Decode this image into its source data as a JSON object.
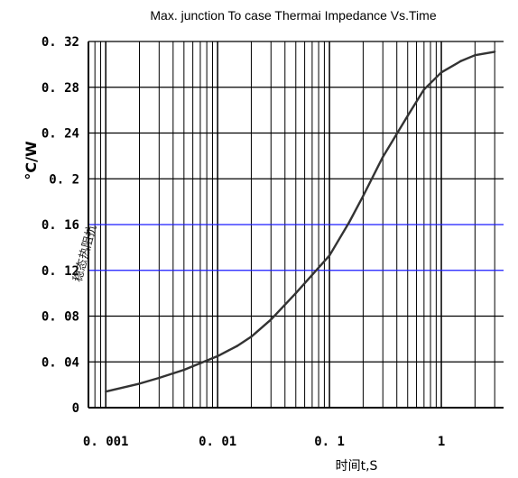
{
  "chart_data": {
    "type": "line",
    "title": "Max. junction To case Thermai Impedance Vs.Time",
    "xlabel": "时间t,S",
    "ylabel": "°C/W",
    "ylabel_secondary": "稳态热阻抗",
    "x_scale": "log",
    "xlim": [
      0.0007,
      3.6
    ],
    "ylim": [
      0,
      0.32
    ],
    "x_ticks": [
      0.001,
      0.01,
      0.1,
      1
    ],
    "x_tick_labels": [
      "0. 001",
      "0. 01",
      "0. 1",
      "1"
    ],
    "y_ticks": [
      0,
      0.04,
      0.08,
      0.12,
      0.16,
      0.2,
      0.24,
      0.28,
      0.32
    ],
    "y_tick_labels": [
      "0",
      "0. 04",
      "0. 08",
      "0. 12",
      "0. 16",
      "0. 2",
      "0. 24",
      "0. 28",
      "0. 32"
    ],
    "grid": true,
    "series": [
      {
        "x": [
          0.001,
          0.002,
          0.003,
          0.005,
          0.01,
          0.015,
          0.02,
          0.03,
          0.05,
          0.07,
          0.1,
          0.15,
          0.2,
          0.3,
          0.5,
          0.7,
          1,
          1.5,
          2,
          3
        ],
        "y": [
          0.014,
          0.021,
          0.026,
          0.033,
          0.045,
          0.054,
          0.062,
          0.077,
          0.1,
          0.116,
          0.133,
          0.162,
          0.185,
          0.219,
          0.255,
          0.278,
          0.293,
          0.303,
          0.308,
          0.311
        ]
      }
    ]
  }
}
